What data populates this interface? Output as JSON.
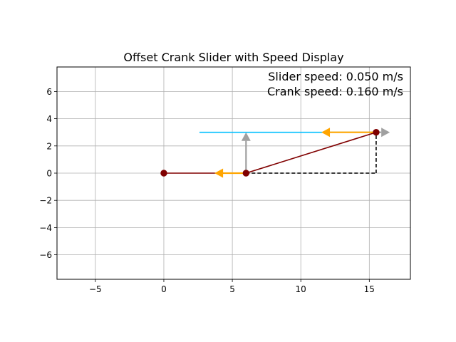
{
  "chart_data": {
    "type": "line",
    "title": "Offset Crank Slider with Speed Display",
    "xlabel": "",
    "ylabel": "",
    "xlim": [
      -7.8,
      18.0
    ],
    "ylim": [
      -7.8,
      7.8
    ],
    "xticks": [
      -5,
      0,
      5,
      10,
      15
    ],
    "yticks": [
      -6,
      -4,
      -2,
      0,
      2,
      4,
      6
    ],
    "xtick_labels": [
      "−5",
      "0",
      "5",
      "10",
      "15"
    ],
    "ytick_labels": [
      "−6",
      "−4",
      "−2",
      "0",
      "2",
      "4",
      "6"
    ],
    "grid": true,
    "annotations": [
      {
        "id": "slider-speed",
        "text": "Slider speed: 0.050 m/s"
      },
      {
        "id": "crank-speed",
        "text": "Crank speed: 0.160 m/s"
      }
    ],
    "series": [
      {
        "role": "ground-link",
        "x": [
          0,
          6
        ],
        "y": [
          0,
          0
        ],
        "color": "#800000",
        "style": "solid"
      },
      {
        "role": "coupler-link",
        "x": [
          6,
          15.5
        ],
        "y": [
          0,
          3
        ],
        "color": "#800000",
        "style": "solid"
      },
      {
        "role": "slider-path",
        "x": [
          2.6,
          15.5
        ],
        "y": [
          3,
          3
        ],
        "color": "#00bfff",
        "style": "solid"
      },
      {
        "role": "offset-vertical",
        "x": [
          15.5,
          15.5
        ],
        "y": [
          0,
          3
        ],
        "color": "#000000",
        "style": "dashed"
      },
      {
        "role": "offset-horizontal",
        "x": [
          6,
          15.5
        ],
        "y": [
          0,
          0
        ],
        "color": "#000000",
        "style": "dashed"
      }
    ],
    "joints": [
      {
        "x": 0,
        "y": 0,
        "color": "#800000"
      },
      {
        "x": 6,
        "y": 0,
        "color": "#800000"
      },
      {
        "x": 15.5,
        "y": 3,
        "color": "#800000"
      }
    ],
    "vectors": [
      {
        "role": "crank-velocity",
        "x": 6,
        "y": 0,
        "dx": -2.3,
        "dy": 0,
        "color": "#ffa500"
      },
      {
        "role": "slider-velocity",
        "x": 15.5,
        "y": 3,
        "dx": -4.0,
        "dy": 0,
        "color": "#ffa500"
      },
      {
        "role": "crank-velocity-vertical",
        "x": 6,
        "y": 0,
        "dx": 0,
        "dy": 3.0,
        "color": "#a0a0a0"
      },
      {
        "role": "slider-velocity-horizontal",
        "x": 15.5,
        "y": 3,
        "dx": 1.0,
        "dy": 0,
        "color": "#a0a0a0"
      }
    ]
  }
}
